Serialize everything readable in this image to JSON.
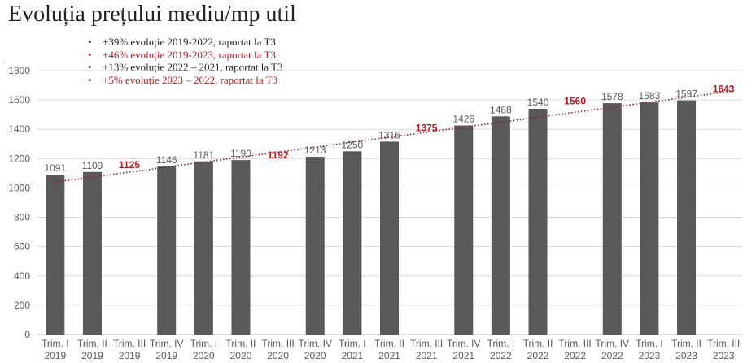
{
  "title": "Evoluția prețului mediu/mp util",
  "notes": [
    {
      "text": "+39% evoluție 2019-2022, raportat la T3",
      "color": "#222222"
    },
    {
      "text": "+46% evoluție 2019-2023, raportat la T3",
      "color": "#b01c24"
    },
    {
      "text": "+13% evoluție 2022 – 2021, raportat la T3",
      "color": "#222222"
    },
    {
      "text": "+5% evoluție 2023 – 2022, raportat la T3",
      "color": "#b01c24"
    }
  ],
  "bullet": "•",
  "stray_mark": "⸝",
  "chart_data": {
    "type": "bar",
    "title": "",
    "xlabel": "",
    "ylabel": "",
    "ylim": [
      0,
      1800
    ],
    "yticks": [
      0,
      200,
      400,
      600,
      800,
      1000,
      1200,
      1400,
      1600,
      1800
    ],
    "grid": true,
    "categories": [
      [
        "Trim. I",
        "2019"
      ],
      [
        "Trim. II",
        "2019"
      ],
      [
        "Trim. III",
        "2019"
      ],
      [
        "Trim. IV",
        "2019"
      ],
      [
        "Trim. I",
        "2020"
      ],
      [
        "Trim. II",
        "2020"
      ],
      [
        "Trim. III",
        "2020"
      ],
      [
        "Trim. IV",
        "2020"
      ],
      [
        "Trim. I",
        "2021"
      ],
      [
        "Trim. II",
        "2021"
      ],
      [
        "Trim. III",
        "2021"
      ],
      [
        "Trim. IV",
        "2021"
      ],
      [
        "Trim. I",
        "2022"
      ],
      [
        "Trim. II",
        "2022"
      ],
      [
        "Trim. III",
        "2022"
      ],
      [
        "Trim. IV",
        "2022"
      ],
      [
        "Trim. I",
        "2023"
      ],
      [
        "Trim. II",
        "2023"
      ],
      [
        "Trim. III",
        "2023"
      ]
    ],
    "values": [
      1091,
      1109,
      null,
      1146,
      1181,
      1190,
      null,
      1213,
      1250,
      1316,
      null,
      1426,
      1488,
      1540,
      null,
      1578,
      1583,
      1597,
      null
    ],
    "highlights": [
      {
        "category_index": 2,
        "value": 1125
      },
      {
        "category_index": 6,
        "value": 1192
      },
      {
        "category_index": 10,
        "value": 1375
      },
      {
        "category_index": 14,
        "value": 1560
      },
      {
        "category_index": 18,
        "value": 1643
      }
    ],
    "trendline": {
      "style": "dotted",
      "from": 1040,
      "to": 1660
    },
    "colors": {
      "bar": "#595959",
      "highlight": "#b01c24",
      "trend": "#8b1a2b",
      "grid": "#d9d9d9",
      "axis_text": "#595959"
    }
  }
}
